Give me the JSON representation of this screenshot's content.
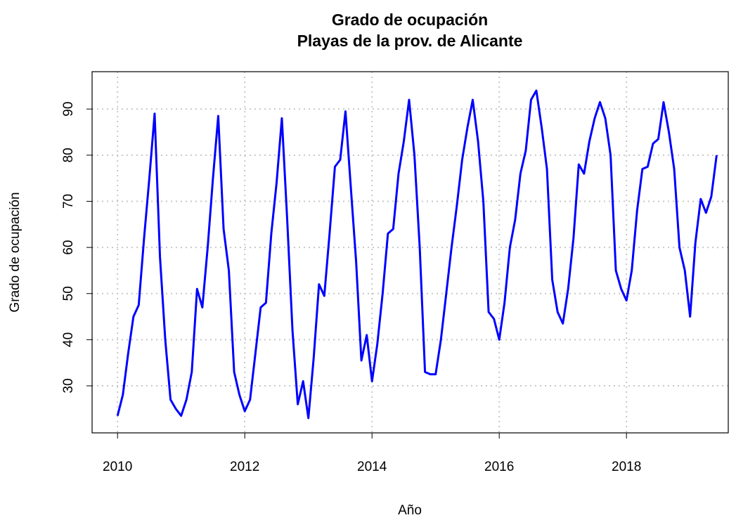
{
  "chart_data": {
    "type": "line",
    "title": [
      "Grado de ocupación",
      "Playas de la prov. de Alicante"
    ],
    "x_label": "Año",
    "y_label": "Grado de ocupación",
    "x": [
      2010,
      2010.083,
      2010.167,
      2010.25,
      2010.333,
      2010.417,
      2010.5,
      2010.583,
      2010.667,
      2010.75,
      2010.833,
      2010.917,
      2011,
      2011.083,
      2011.167,
      2011.25,
      2011.333,
      2011.417,
      2011.5,
      2011.583,
      2011.667,
      2011.75,
      2011.833,
      2011.917,
      2012,
      2012.083,
      2012.167,
      2012.25,
      2012.333,
      2012.417,
      2012.5,
      2012.583,
      2012.667,
      2012.75,
      2012.833,
      2012.917,
      2013,
      2013.083,
      2013.167,
      2013.25,
      2013.333,
      2013.417,
      2013.5,
      2013.583,
      2013.667,
      2013.75,
      2013.833,
      2013.917,
      2014,
      2014.083,
      2014.167,
      2014.25,
      2014.333,
      2014.417,
      2014.5,
      2014.583,
      2014.667,
      2014.75,
      2014.833,
      2014.917,
      2015,
      2015.083,
      2015.167,
      2015.25,
      2015.333,
      2015.417,
      2015.5,
      2015.583,
      2015.667,
      2015.75,
      2015.833,
      2015.917,
      2016,
      2016.083,
      2016.167,
      2016.25,
      2016.333,
      2016.417,
      2016.5,
      2016.583,
      2016.667,
      2016.75,
      2016.833,
      2016.917,
      2017,
      2017.083,
      2017.167,
      2017.25,
      2017.333,
      2017.417,
      2017.5,
      2017.583,
      2017.667,
      2017.75,
      2017.833,
      2017.917,
      2018,
      2018.083,
      2018.167,
      2018.25,
      2018.333,
      2018.417,
      2018.5,
      2018.583,
      2018.667,
      2018.75,
      2018.833,
      2018.917,
      2019,
      2019.083,
      2019.167,
      2019.25,
      2019.333,
      2019.417
    ],
    "series": [
      {
        "color": "#0000ff",
        "values": [
          23.5,
          28,
          37,
          45,
          47.5,
          62,
          75,
          89,
          58,
          40,
          27,
          25,
          23.5,
          27,
          33,
          51,
          47,
          60,
          75,
          88.5,
          64,
          55,
          33,
          28,
          24.5,
          27,
          37,
          47,
          48,
          63,
          74,
          88,
          66,
          42,
          26,
          31,
          23,
          36,
          52,
          49.5,
          63,
          77.5,
          79,
          89.5,
          73,
          57,
          35.5,
          41,
          31,
          39,
          50,
          63,
          64,
          76,
          83,
          92,
          80,
          60,
          33,
          32.5,
          32.5,
          40,
          50,
          60,
          69,
          79,
          86,
          92,
          83,
          70,
          46,
          44.5,
          40,
          48,
          60,
          66,
          76,
          81,
          92,
          94,
          86,
          77,
          53,
          46,
          43.5,
          51,
          62,
          78,
          76,
          83,
          88,
          91.5,
          88,
          80,
          55,
          51,
          48.5,
          55,
          68,
          77,
          77.5,
          82.5,
          83.5,
          91.5,
          85,
          77,
          60,
          55,
          45,
          61,
          70.5,
          67.5,
          71,
          80
        ]
      }
    ],
    "xlim": [
      2009.6,
      2019.6
    ],
    "ylim": [
      19.8,
      98.1
    ],
    "xticks": [
      2010,
      2012,
      2014,
      2016,
      2018
    ],
    "yticks": [
      30,
      40,
      50,
      60,
      70,
      80,
      90
    ],
    "grid": true
  }
}
